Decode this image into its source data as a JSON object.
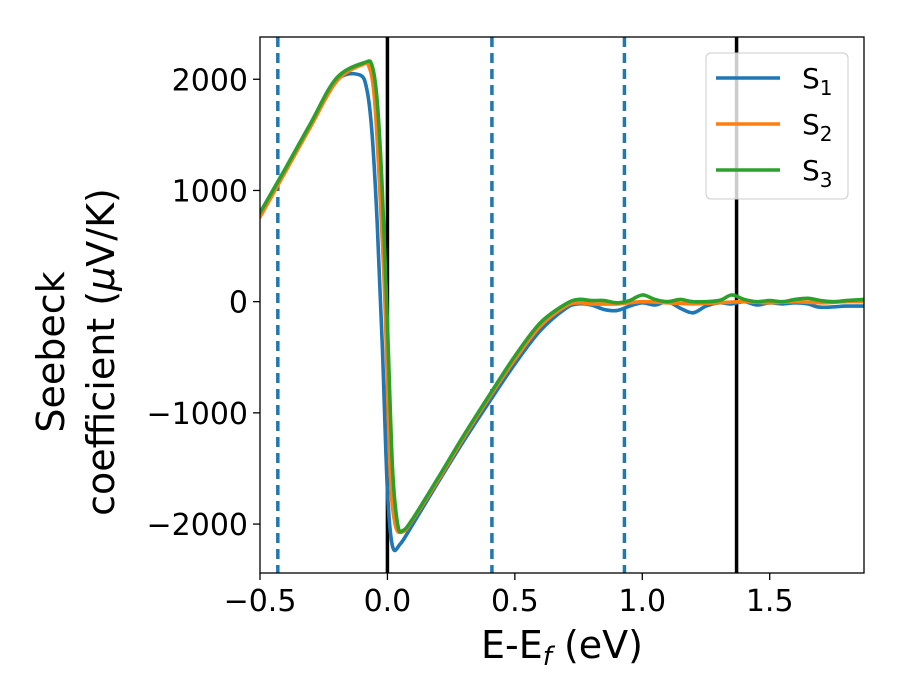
{
  "chart_data": {
    "type": "line",
    "xlabel_main": "E-E",
    "xlabel_sub": "f",
    "xlabel_unit": " (eV)",
    "ylabel_line1": "Seebeck",
    "ylabel_line2_prefix": "coefficient  (",
    "ylabel_mu": "μ",
    "ylabel_line2_suffix": "V/K)",
    "xlim": [
      -0.5,
      1.87
    ],
    "ylim": [
      -2440,
      2380
    ],
    "x_ticks": [
      {
        "value": -0.5,
        "label": "−0.5"
      },
      {
        "value": 0.0,
        "label": "0.0"
      },
      {
        "value": 0.5,
        "label": "0.5"
      },
      {
        "value": 1.0,
        "label": "1.0"
      },
      {
        "value": 1.5,
        "label": "1.5"
      }
    ],
    "y_ticks": [
      {
        "value": 2000,
        "label": "2000"
      },
      {
        "value": 1000,
        "label": "1000"
      },
      {
        "value": 0,
        "label": "0"
      },
      {
        "value": -1000,
        "label": "−1000"
      },
      {
        "value": -2000,
        "label": "−2000"
      }
    ],
    "vlines_dashed": [
      -0.43,
      0.41,
      0.93
    ],
    "vlines_solid": [
      0.0,
      1.37
    ],
    "dashed_color": "#1f77b4",
    "solid_color": "#000000",
    "legend_position": "top-right",
    "series": [
      {
        "name": "S",
        "sub": "1",
        "color": "#1f77b4",
        "points": [
          [
            -0.5,
            770
          ],
          [
            -0.4,
            1180
          ],
          [
            -0.3,
            1590
          ],
          [
            -0.2,
            1990
          ],
          [
            -0.11,
            2040
          ],
          [
            -0.08,
            1900
          ],
          [
            -0.06,
            1500
          ],
          [
            -0.04,
            700
          ],
          [
            -0.02,
            -400
          ],
          [
            0.0,
            -1700
          ],
          [
            0.02,
            -2200
          ],
          [
            0.05,
            -2180
          ],
          [
            0.1,
            -2000
          ],
          [
            0.2,
            -1620
          ],
          [
            0.3,
            -1250
          ],
          [
            0.4,
            -900
          ],
          [
            0.5,
            -560
          ],
          [
            0.6,
            -260
          ],
          [
            0.7,
            -60
          ],
          [
            0.75,
            -20
          ],
          [
            0.8,
            -30
          ],
          [
            0.85,
            -70
          ],
          [
            0.9,
            -80
          ],
          [
            0.95,
            -40
          ],
          [
            1.0,
            -10
          ],
          [
            1.05,
            -30
          ],
          [
            1.1,
            0
          ],
          [
            1.15,
            -60
          ],
          [
            1.2,
            -100
          ],
          [
            1.25,
            -40
          ],
          [
            1.3,
            -10
          ],
          [
            1.35,
            -20
          ],
          [
            1.4,
            0
          ],
          [
            1.45,
            -30
          ],
          [
            1.5,
            -10
          ],
          [
            1.55,
            -20
          ],
          [
            1.6,
            -10
          ],
          [
            1.65,
            -20
          ],
          [
            1.7,
            -50
          ],
          [
            1.8,
            -40
          ],
          [
            1.87,
            -40
          ]
        ]
      },
      {
        "name": "S",
        "sub": "2",
        "color": "#ff7f0e",
        "points": [
          [
            -0.5,
            760
          ],
          [
            -0.4,
            1170
          ],
          [
            -0.3,
            1580
          ],
          [
            -0.2,
            1980
          ],
          [
            -0.1,
            2130
          ],
          [
            -0.07,
            2100
          ],
          [
            -0.05,
            1800
          ],
          [
            -0.03,
            1000
          ],
          [
            -0.01,
            0
          ],
          [
            0.01,
            -1500
          ],
          [
            0.03,
            -2000
          ],
          [
            0.06,
            -2070
          ],
          [
            0.1,
            -1960
          ],
          [
            0.2,
            -1600
          ],
          [
            0.3,
            -1220
          ],
          [
            0.4,
            -860
          ],
          [
            0.5,
            -520
          ],
          [
            0.6,
            -220
          ],
          [
            0.7,
            -40
          ],
          [
            0.75,
            -10
          ],
          [
            0.8,
            -20
          ],
          [
            0.9,
            -20
          ],
          [
            1.0,
            0
          ],
          [
            1.1,
            -10
          ],
          [
            1.2,
            -20
          ],
          [
            1.3,
            -10
          ],
          [
            1.4,
            0
          ],
          [
            1.5,
            -10
          ],
          [
            1.6,
            0
          ],
          [
            1.7,
            -10
          ],
          [
            1.8,
            0
          ],
          [
            1.87,
            0
          ]
        ]
      },
      {
        "name": "S",
        "sub": "3",
        "color": "#2ca02c",
        "points": [
          [
            -0.5,
            800
          ],
          [
            -0.4,
            1200
          ],
          [
            -0.3,
            1610
          ],
          [
            -0.2,
            2010
          ],
          [
            -0.09,
            2150
          ],
          [
            -0.06,
            2120
          ],
          [
            -0.04,
            1800
          ],
          [
            -0.02,
            1000
          ],
          [
            0.0,
            -200
          ],
          [
            0.02,
            -1500
          ],
          [
            0.04,
            -2000
          ],
          [
            0.06,
            -2060
          ],
          [
            0.1,
            -1950
          ],
          [
            0.2,
            -1580
          ],
          [
            0.3,
            -1200
          ],
          [
            0.4,
            -840
          ],
          [
            0.5,
            -490
          ],
          [
            0.6,
            -190
          ],
          [
            0.7,
            -20
          ],
          [
            0.75,
            20
          ],
          [
            0.8,
            10
          ],
          [
            0.85,
            10
          ],
          [
            0.9,
            -10
          ],
          [
            0.95,
            10
          ],
          [
            1.0,
            60
          ],
          [
            1.05,
            20
          ],
          [
            1.1,
            0
          ],
          [
            1.15,
            20
          ],
          [
            1.2,
            0
          ],
          [
            1.3,
            10
          ],
          [
            1.35,
            60
          ],
          [
            1.4,
            20
          ],
          [
            1.45,
            0
          ],
          [
            1.5,
            10
          ],
          [
            1.55,
            0
          ],
          [
            1.6,
            20
          ],
          [
            1.65,
            30
          ],
          [
            1.7,
            10
          ],
          [
            1.75,
            0
          ],
          [
            1.8,
            10
          ],
          [
            1.87,
            20
          ]
        ]
      }
    ]
  }
}
